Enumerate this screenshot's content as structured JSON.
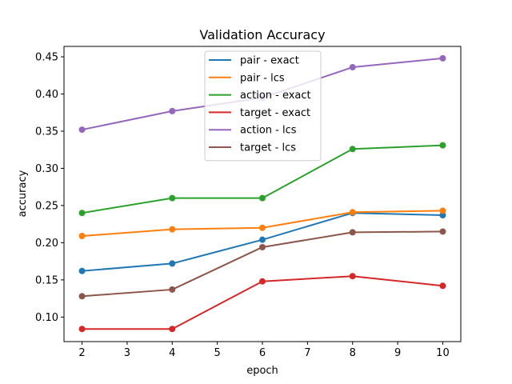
{
  "chart_data": {
    "type": "line",
    "title": "Validation Accuracy",
    "xlabel": "epoch",
    "ylabel": "accuracy",
    "x": [
      2,
      4,
      6,
      8,
      10
    ],
    "xlim": [
      1.6,
      10.4
    ],
    "ylim": [
      0.067,
      0.464
    ],
    "xticks": [
      "2",
      "3",
      "4",
      "5",
      "6",
      "7",
      "8",
      "9",
      "10"
    ],
    "yticks": [
      "0.10",
      "0.15",
      "0.20",
      "0.25",
      "0.30",
      "0.35",
      "0.40",
      "0.45"
    ],
    "grid": false,
    "legend_position": "upper center",
    "series": [
      {
        "name": "pair - exact",
        "color": "#1f77b4",
        "values": [
          0.162,
          0.172,
          0.204,
          0.24,
          0.237
        ]
      },
      {
        "name": "pair - lcs",
        "color": "#ff7f0e",
        "values": [
          0.209,
          0.218,
          0.22,
          0.241,
          0.243
        ]
      },
      {
        "name": "action - exact",
        "color": "#2ca02c",
        "values": [
          0.24,
          0.26,
          0.26,
          0.326,
          0.331
        ]
      },
      {
        "name": "target - exact",
        "color": "#d62728",
        "values": [
          0.084,
          0.084,
          0.148,
          0.155,
          0.142
        ]
      },
      {
        "name": "action - lcs",
        "color": "#9467bd",
        "values": [
          0.352,
          0.377,
          0.395,
          0.436,
          0.448
        ]
      },
      {
        "name": "target - lcs",
        "color": "#8c564b",
        "values": [
          0.128,
          0.137,
          0.194,
          0.214,
          0.215
        ]
      }
    ]
  }
}
